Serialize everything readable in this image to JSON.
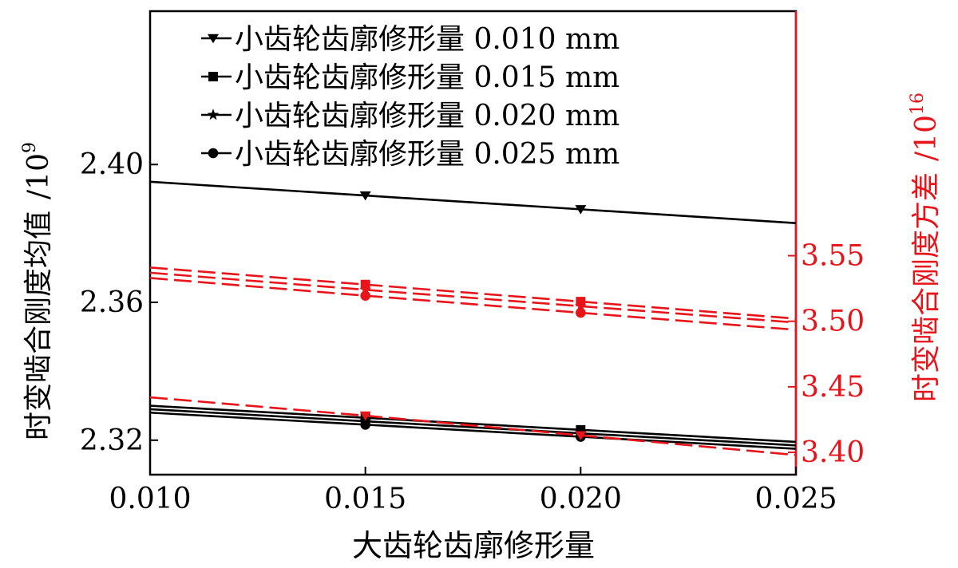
{
  "chart_data": {
    "type": "line",
    "xlabel": "大齿轮齿廓修形量",
    "ylabel_left_main": "时变啮合刚度均值",
    "ylabel_left_unit": "/10",
    "ylabel_left_exp": "9",
    "ylabel_right_main": "时变啮合刚度方差",
    "ylabel_right_unit": "/10",
    "ylabel_right_exp": "16",
    "xlim": [
      0.01,
      0.025
    ],
    "ylim_left": [
      2.31,
      2.4445
    ],
    "ylim_right": [
      3.383,
      3.7365
    ],
    "xticks": [
      "0.010",
      "0.015",
      "0.020",
      "0.025"
    ],
    "xtick_values": [
      0.01,
      0.015,
      0.02,
      0.025
    ],
    "yticks_left": [
      "2.32",
      "2.36",
      "2.40"
    ],
    "ytick_values_left": [
      2.32,
      2.36,
      2.4
    ],
    "yticks_right": [
      "3.40",
      "3.45",
      "3.50",
      "3.55"
    ],
    "ytick_values_right": [
      3.4,
      3.45,
      3.5,
      3.55
    ],
    "legend_position": "top-left",
    "colors": {
      "mean": "#000000",
      "variance": "#e8141a"
    },
    "legend": [
      {
        "label": "小齿轮齿廓修形量 0.010 mm",
        "marker": "triangle-down"
      },
      {
        "label": "小齿轮齿廓修形量 0.015 mm",
        "marker": "square"
      },
      {
        "label": "小齿轮齿廓修形量 0.020 mm",
        "marker": "star"
      },
      {
        "label": "小齿轮齿廓修形量 0.025 mm",
        "marker": "circle"
      }
    ],
    "series": [
      {
        "name": "小齿轮齿廓修形量 0.010 mm",
        "axis": "left",
        "marker": "triangle-down",
        "x": [
          0.01,
          0.015,
          0.02,
          0.025
        ],
        "y": [
          2.395,
          2.391,
          2.387,
          2.383
        ]
      },
      {
        "name": "小齿轮齿廓修形量 0.015 mm",
        "axis": "left",
        "marker": "square",
        "x": [
          0.01,
          0.015,
          0.02,
          0.025
        ],
        "y": [
          2.33,
          2.3265,
          2.323,
          2.3195
        ]
      },
      {
        "name": "小齿轮齿廓修形量 0.020 mm",
        "axis": "left",
        "marker": "star",
        "x": [
          0.01,
          0.015,
          0.02,
          0.025
        ],
        "y": [
          2.329,
          2.3255,
          2.322,
          2.3185
        ]
      },
      {
        "name": "小齿轮齿廓修形量 0.025 mm",
        "axis": "left",
        "marker": "circle",
        "x": [
          0.01,
          0.015,
          0.02,
          0.025
        ],
        "y": [
          2.328,
          2.3245,
          2.321,
          2.3175
        ]
      },
      {
        "name": "小齿轮齿廓修形量 0.010 mm",
        "axis": "right",
        "marker": "triangle-down",
        "x": [
          0.01,
          0.015,
          0.02,
          0.025
        ],
        "y": [
          3.442,
          3.428,
          3.413,
          3.398
        ]
      },
      {
        "name": "小齿轮齿廓修形量 0.015 mm",
        "axis": "right",
        "marker": "square",
        "x": [
          0.01,
          0.015,
          0.02,
          0.025
        ],
        "y": [
          3.541,
          3.528,
          3.515,
          3.502
        ]
      },
      {
        "name": "小齿轮齿廓修形量 0.020 mm",
        "axis": "right",
        "marker": "star",
        "x": [
          0.01,
          0.015,
          0.02,
          0.025
        ],
        "y": [
          3.537,
          3.524,
          3.5115,
          3.499
        ]
      },
      {
        "name": "小齿轮齿廓修形量 0.025 mm",
        "axis": "right",
        "marker": "circle",
        "x": [
          0.01,
          0.015,
          0.02,
          0.025
        ],
        "y": [
          3.533,
          3.5195,
          3.5065,
          3.4935
        ]
      }
    ]
  }
}
